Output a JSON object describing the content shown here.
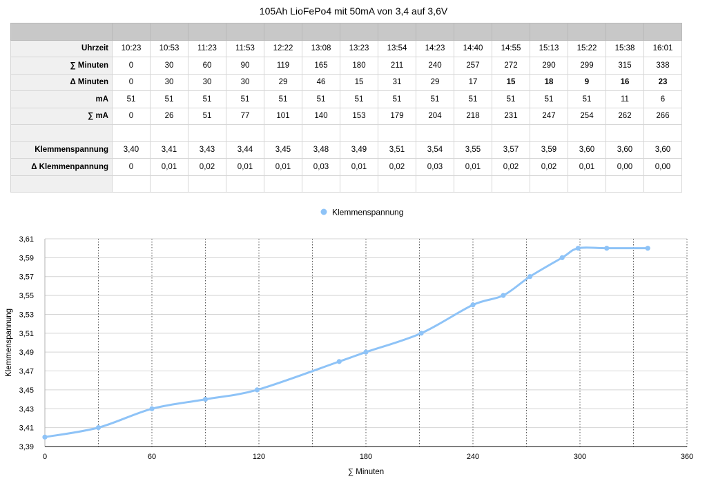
{
  "table": {
    "title": "105Ah LioFePo4 mit 50mA von 3,4 auf 3,6V",
    "rows": [
      {
        "label": "Uhrzeit",
        "cells": [
          "10:23",
          "10:53",
          "11:23",
          "11:53",
          "12:22",
          "13:08",
          "13:23",
          "13:54",
          "14:23",
          "14:40",
          "14:55",
          "15:13",
          "15:22",
          "15:38",
          "16:01"
        ]
      },
      {
        "label": "∑ Minuten",
        "cells": [
          "0",
          "30",
          "60",
          "90",
          "119",
          "165",
          "180",
          "211",
          "240",
          "257",
          "272",
          "290",
          "299",
          "315",
          "338"
        ]
      },
      {
        "label": "Δ Minuten",
        "cells": [
          "0",
          "30",
          "30",
          "30",
          "29",
          "46",
          "15",
          "31",
          "29",
          "17",
          "15",
          "18",
          "9",
          "16",
          "23"
        ]
      },
      {
        "label": "mA",
        "cells": [
          "51",
          "51",
          "51",
          "51",
          "51",
          "51",
          "51",
          "51",
          "51",
          "51",
          "51",
          "51",
          "51",
          "11",
          "6"
        ]
      },
      {
        "label": "∑ mA",
        "cells": [
          "0",
          "26",
          "51",
          "77",
          "101",
          "140",
          "153",
          "179",
          "204",
          "218",
          "231",
          "247",
          "254",
          "262",
          "266"
        ]
      },
      {
        "label": "",
        "cells": [
          "",
          "",
          "",
          "",
          "",
          "",
          "",
          "",
          "",
          "",
          "",
          "",
          "",
          "",
          ""
        ]
      },
      {
        "label": "Klemmenspannung",
        "cells": [
          "3,40",
          "3,41",
          "3,43",
          "3,44",
          "3,45",
          "3,48",
          "3,49",
          "3,51",
          "3,54",
          "3,55",
          "3,57",
          "3,59",
          "3,60",
          "3,60",
          "3,60"
        ]
      },
      {
        "label": "Δ Klemmenpannung",
        "cells": [
          "0",
          "0,01",
          "0,02",
          "0,01",
          "0,01",
          "0,03",
          "0,01",
          "0,02",
          "0,03",
          "0,01",
          "0,02",
          "0,02",
          "0,01",
          "0,00",
          "0,00"
        ]
      },
      {
        "label": "",
        "cells": [
          "",
          "",
          "",
          "",
          "",
          "",
          "",
          "",
          "",
          "",
          "",
          "",
          "",
          "",
          ""
        ]
      }
    ]
  },
  "chart_data": {
    "type": "line",
    "xlabel": "∑ Minuten",
    "ylabel": "Klemmenspannung",
    "xlim": [
      0,
      360
    ],
    "ylim": [
      3.39,
      3.61
    ],
    "x_ticks": [
      "0",
      "60",
      "120",
      "180",
      "240",
      "300",
      "360"
    ],
    "y_ticks": [
      "3,39",
      "3,41",
      "3,43",
      "3,45",
      "3,47",
      "3,49",
      "3,51",
      "3,53",
      "3,55",
      "3,57",
      "3,59",
      "3,61"
    ],
    "legend_position": "top",
    "series": [
      {
        "name": "Klemmenspannung",
        "color": "#8ec3f7",
        "x": [
          0,
          30,
          60,
          90,
          119,
          165,
          180,
          211,
          240,
          257,
          272,
          290,
          299,
          315,
          338
        ],
        "y": [
          3.4,
          3.41,
          3.43,
          3.44,
          3.45,
          3.48,
          3.49,
          3.51,
          3.54,
          3.55,
          3.57,
          3.59,
          3.6,
          3.6,
          3.6
        ]
      }
    ]
  }
}
